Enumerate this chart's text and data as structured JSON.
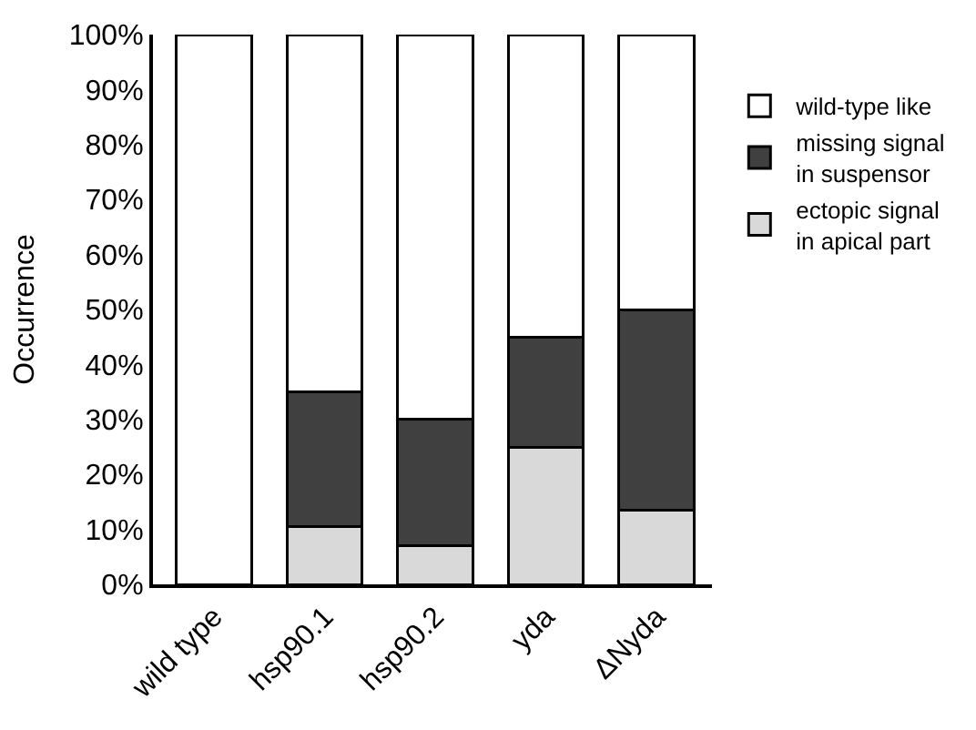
{
  "chart_data": {
    "type": "bar",
    "stacked": true,
    "ylabel": "Occurrence",
    "categories": [
      "wild type",
      "hsp90.1",
      "hsp90.2",
      "yda",
      "ΔNyda"
    ],
    "series": [
      {
        "name": "ectopic signal\nin apical part",
        "color": "#d9d9d9",
        "values": [
          0,
          10.5,
          7,
          25,
          13.5
        ]
      },
      {
        "name": "missing signal\nin suspensor",
        "color": "#404040",
        "values": [
          0,
          24.5,
          23,
          20,
          36.5
        ]
      },
      {
        "name": "wild-type like",
        "color": "#ffffff",
        "values": [
          100,
          65,
          70,
          55,
          50
        ]
      }
    ],
    "ylim": [
      0,
      100
    ],
    "yticks": [
      {
        "value": 0,
        "label": "0%"
      },
      {
        "value": 10,
        "label": "10%"
      },
      {
        "value": 20,
        "label": "20%"
      },
      {
        "value": 30,
        "label": "30%"
      },
      {
        "value": 40,
        "label": "40%"
      },
      {
        "value": 50,
        "label": "50%"
      },
      {
        "value": 60,
        "label": "60%"
      },
      {
        "value": 70,
        "label": "70%"
      },
      {
        "value": 80,
        "label": "80%"
      },
      {
        "value": 90,
        "label": "90%"
      },
      {
        "value": 100,
        "label": "100%"
      }
    ],
    "legend": "right"
  }
}
